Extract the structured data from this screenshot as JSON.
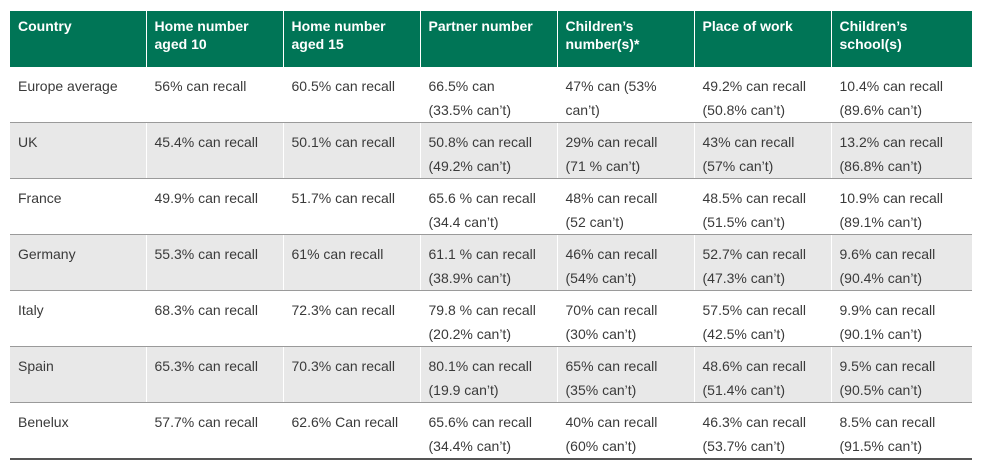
{
  "headers": [
    [
      "Country"
    ],
    [
      "Home number",
      "aged 10"
    ],
    [
      "Home number",
      "aged 15"
    ],
    [
      "Partner number"
    ],
    [
      "Children’s",
      "number(s)*"
    ],
    [
      "Place of work"
    ],
    [
      "Children’s",
      "school(s)"
    ]
  ],
  "rows": [
    [
      [
        "Europe average"
      ],
      [
        "56% can recall"
      ],
      [
        "60.5% can recall"
      ],
      [
        "66.5% can",
        "(33.5% can’t)"
      ],
      [
        "47% can     (53%",
        "can’t)"
      ],
      [
        "49.2% can recall",
        "(50.8% can’t)"
      ],
      [
        "10.4% can recall",
        "(89.6% can’t)"
      ]
    ],
    [
      [
        "UK"
      ],
      [
        "45.4% can recall"
      ],
      [
        "50.1% can recall"
      ],
      [
        "50.8% can recall",
        "(49.2% can’t)"
      ],
      [
        "29% can recall",
        "(71 % can’t)"
      ],
      [
        "43% can recall",
        "(57% can’t)"
      ],
      [
        "13.2% can recall",
        "(86.8% can’t)"
      ]
    ],
    [
      [
        "France"
      ],
      [
        "49.9% can recall"
      ],
      [
        "51.7% can recall"
      ],
      [
        "65.6 % can recall",
        "(34.4 can’t)"
      ],
      [
        "48% can recall",
        "(52 can’t)"
      ],
      [
        "48.5% can recall",
        "(51.5% can’t)"
      ],
      [
        "10.9% can recall",
        "(89.1% can’t)"
      ]
    ],
    [
      [
        "Germany"
      ],
      [
        "55.3% can recall"
      ],
      [
        "61% can recall"
      ],
      [
        "61.1 % can recall",
        "(38.9% can’t)"
      ],
      [
        "46% can recall",
        "(54% can’t)"
      ],
      [
        "52.7% can recall",
        "(47.3% can’t)"
      ],
      [
        "9.6% can recall",
        "(90.4% can’t)"
      ]
    ],
    [
      [
        "Italy"
      ],
      [
        "68.3% can recall"
      ],
      [
        "72.3% can recall"
      ],
      [
        "79.8 % can recall",
        "(20.2% can’t)"
      ],
      [
        "70% can recall",
        "(30% can’t)"
      ],
      [
        "57.5% can recall",
        "(42.5% can’t)"
      ],
      [
        "9.9% can recall",
        "(90.1% can’t)"
      ]
    ],
    [
      [
        "Spain"
      ],
      [
        "65.3% can recall"
      ],
      [
        "70.3% can recall"
      ],
      [
        "80.1% can recall",
        "(19.9 can’t)"
      ],
      [
        "65% can recall",
        "(35% can’t)"
      ],
      [
        "48.6% can recall",
        "(51.4% can’t)"
      ],
      [
        "9.5% can recall",
        "(90.5% can’t)"
      ]
    ],
    [
      [
        "Benelux"
      ],
      [
        "57.7% can recall"
      ],
      [
        "62.6% Can recall"
      ],
      [
        "65.6% can recall",
        "(34.4% can’t)"
      ],
      [
        "40% can recall",
        "(60% can’t)"
      ],
      [
        "46.3% can recall",
        "(53.7% can’t)"
      ],
      [
        "8.5% can recall",
        "(91.5% can’t)"
      ]
    ]
  ],
  "colors": {
    "header_bg": "#007556",
    "shade_bg": "#e8e8e8"
  }
}
